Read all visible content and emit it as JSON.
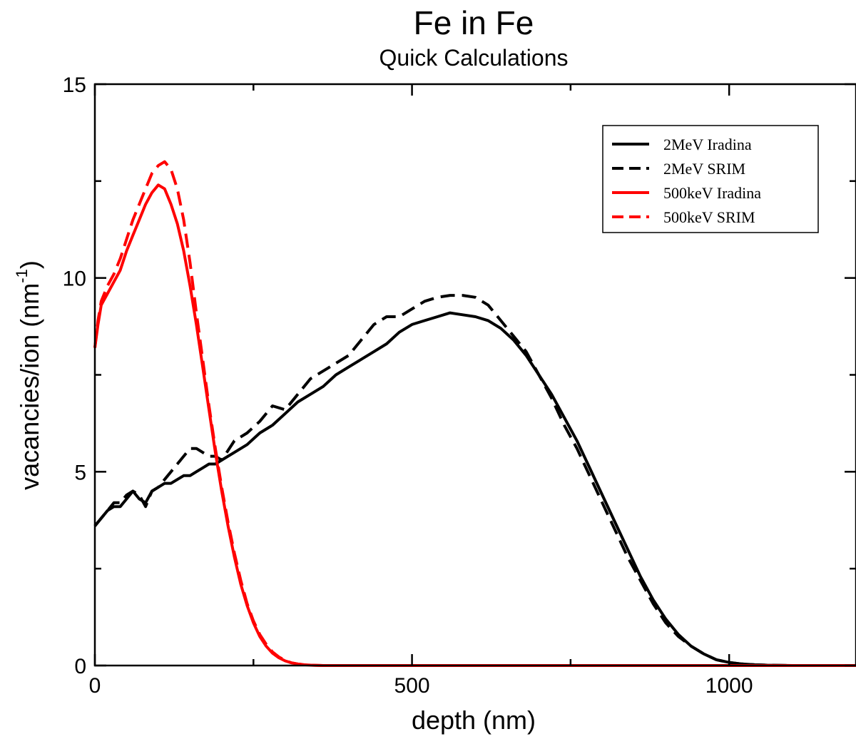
{
  "chart_data": {
    "type": "line",
    "title": "Fe in Fe",
    "subtitle": "Quick Calculations",
    "xlabel": "depth (nm)",
    "ylabel_main": "vacancies/ion (nm",
    "ylabel_sup": "-1",
    "ylabel_end": ")",
    "xlim": [
      0,
      1200
    ],
    "ylim": [
      0,
      15
    ],
    "x_ticks": [
      0,
      500,
      1000
    ],
    "y_ticks": [
      0,
      5,
      10,
      15
    ],
    "x_minor_ticks": [
      250,
      750
    ],
    "y_minor_ticks": [
      2.5,
      7.5,
      12.5
    ],
    "legend_position": "top-right",
    "series": [
      {
        "name": "2MeV Iradina",
        "color": "#000000",
        "dash": "solid",
        "x": [
          0,
          10,
          20,
          30,
          40,
          50,
          60,
          70,
          80,
          90,
          100,
          110,
          120,
          130,
          140,
          150,
          160,
          170,
          180,
          190,
          200,
          220,
          240,
          260,
          280,
          300,
          320,
          340,
          360,
          380,
          400,
          420,
          440,
          460,
          480,
          500,
          520,
          540,
          560,
          580,
          600,
          620,
          640,
          660,
          680,
          700,
          720,
          740,
          760,
          780,
          800,
          820,
          840,
          860,
          880,
          900,
          920,
          940,
          960,
          980,
          1000,
          1020,
          1040,
          1060,
          1080,
          1100,
          1150,
          1200
        ],
        "y": [
          3.6,
          3.8,
          4.0,
          4.1,
          4.1,
          4.3,
          4.5,
          4.3,
          4.2,
          4.5,
          4.6,
          4.7,
          4.7,
          4.8,
          4.9,
          4.9,
          5.0,
          5.1,
          5.2,
          5.2,
          5.3,
          5.5,
          5.7,
          6.0,
          6.2,
          6.5,
          6.8,
          7.0,
          7.2,
          7.5,
          7.7,
          7.9,
          8.1,
          8.3,
          8.6,
          8.8,
          8.9,
          9.0,
          9.1,
          9.05,
          9.0,
          8.9,
          8.7,
          8.4,
          8.0,
          7.5,
          7.0,
          6.4,
          5.8,
          5.1,
          4.4,
          3.7,
          3.0,
          2.3,
          1.7,
          1.2,
          0.8,
          0.5,
          0.3,
          0.15,
          0.08,
          0.04,
          0.02,
          0.01,
          0.005,
          0.0,
          0.0,
          0.0
        ]
      },
      {
        "name": "2MeV SRIM",
        "color": "#000000",
        "dash": "dashed",
        "x": [
          0,
          10,
          20,
          30,
          40,
          50,
          60,
          70,
          80,
          90,
          100,
          110,
          120,
          130,
          140,
          150,
          160,
          170,
          180,
          190,
          200,
          220,
          240,
          260,
          280,
          300,
          320,
          340,
          360,
          380,
          400,
          420,
          440,
          460,
          480,
          500,
          520,
          540,
          560,
          580,
          600,
          620,
          640,
          660,
          680,
          700,
          720,
          740,
          760,
          780,
          800,
          820,
          840,
          860,
          880,
          900,
          920,
          940,
          960,
          980,
          1000,
          1020,
          1040,
          1060,
          1080,
          1100,
          1150,
          1200
        ],
        "y": [
          3.6,
          3.8,
          4.0,
          4.2,
          4.2,
          4.4,
          4.5,
          4.4,
          4.1,
          4.5,
          4.6,
          4.8,
          5.0,
          5.2,
          5.4,
          5.6,
          5.6,
          5.5,
          5.4,
          5.4,
          5.3,
          5.8,
          6.0,
          6.3,
          6.7,
          6.6,
          7.0,
          7.4,
          7.6,
          7.8,
          8.0,
          8.4,
          8.8,
          9.0,
          9.0,
          9.2,
          9.4,
          9.5,
          9.55,
          9.55,
          9.5,
          9.3,
          8.9,
          8.5,
          8.1,
          7.5,
          6.9,
          6.2,
          5.6,
          4.9,
          4.2,
          3.5,
          2.8,
          2.2,
          1.6,
          1.1,
          0.75,
          0.5,
          0.3,
          0.15,
          0.08,
          0.04,
          0.02,
          0.01,
          0.005,
          0.0,
          0.0,
          0.0
        ]
      },
      {
        "name": "500keV Iradina",
        "color": "#ff0000",
        "dash": "solid",
        "x": [
          0,
          5,
          10,
          20,
          30,
          40,
          50,
          60,
          70,
          80,
          90,
          100,
          110,
          120,
          130,
          140,
          150,
          160,
          170,
          180,
          190,
          200,
          210,
          220,
          230,
          240,
          250,
          260,
          270,
          280,
          290,
          300,
          310,
          320,
          330,
          340,
          350,
          360,
          380,
          400,
          450,
          500,
          600,
          800,
          1000,
          1200
        ],
        "y": [
          8.2,
          8.8,
          9.3,
          9.6,
          9.9,
          10.2,
          10.7,
          11.1,
          11.5,
          11.9,
          12.2,
          12.4,
          12.3,
          11.9,
          11.4,
          10.7,
          9.8,
          8.8,
          7.7,
          6.6,
          5.5,
          4.5,
          3.6,
          2.8,
          2.1,
          1.55,
          1.1,
          0.75,
          0.5,
          0.32,
          0.2,
          0.12,
          0.07,
          0.04,
          0.02,
          0.01,
          0.005,
          0.0,
          0.0,
          0.0,
          0.0,
          0.0,
          0.0,
          0.0,
          0.0,
          0.0
        ]
      },
      {
        "name": "500keV SRIM",
        "color": "#ff0000",
        "dash": "dashed",
        "x": [
          0,
          5,
          10,
          20,
          30,
          40,
          50,
          60,
          70,
          80,
          90,
          100,
          110,
          120,
          130,
          140,
          150,
          160,
          170,
          180,
          190,
          200,
          210,
          220,
          230,
          240,
          250,
          260,
          270,
          280,
          290,
          300,
          310,
          320,
          330,
          340,
          350,
          360,
          380,
          400,
          450,
          500,
          600,
          800,
          1000,
          1200
        ],
        "y": [
          8.2,
          8.9,
          9.4,
          9.8,
          10.1,
          10.5,
          11.0,
          11.5,
          11.9,
          12.3,
          12.7,
          12.9,
          13.0,
          12.8,
          12.3,
          11.5,
          10.4,
          9.1,
          7.9,
          6.7,
          5.6,
          4.6,
          3.7,
          2.9,
          2.2,
          1.6,
          1.15,
          0.8,
          0.55,
          0.35,
          0.22,
          0.13,
          0.07,
          0.04,
          0.02,
          0.01,
          0.005,
          0.0,
          0.0,
          0.0,
          0.0,
          0.0,
          0.0,
          0.0,
          0.0,
          0.0
        ]
      }
    ]
  }
}
